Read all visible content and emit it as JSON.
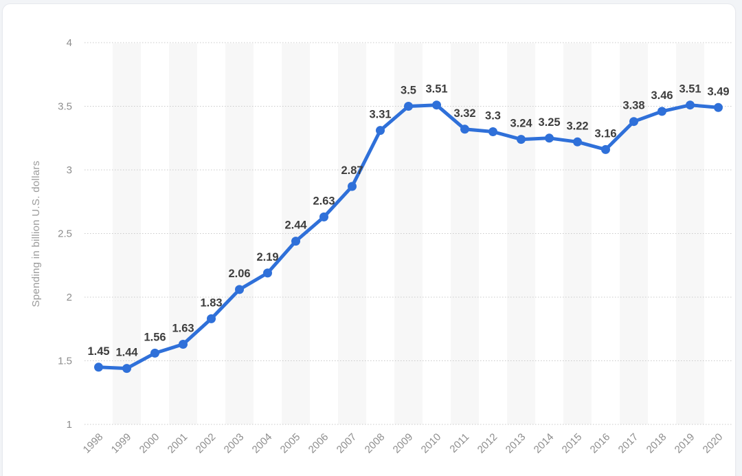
{
  "page": {
    "background_color": "#f2f4f7",
    "card_background_color": "#ffffff",
    "card_border_color": "#e7e9ee"
  },
  "chart_data": {
    "type": "line",
    "title": "",
    "x": [
      "1998",
      "1999",
      "2000",
      "2001",
      "2002",
      "2003",
      "2004",
      "2005",
      "2006",
      "2007",
      "2008",
      "2009",
      "2010",
      "2011",
      "2012",
      "2013",
      "2014",
      "2015",
      "2016",
      "2017",
      "2018",
      "2019",
      "2020"
    ],
    "series": [
      {
        "name": "Spending",
        "values": [
          1.45,
          1.44,
          1.56,
          1.63,
          1.83,
          2.06,
          2.19,
          2.44,
          2.63,
          2.87,
          3.31,
          3.5,
          3.51,
          3.32,
          3.3,
          3.24,
          3.25,
          3.22,
          3.16,
          3.38,
          3.46,
          3.51,
          3.49
        ]
      }
    ],
    "xlabel": "",
    "ylabel": "Spending in billion U.S. dollars",
    "ylim": [
      1,
      4
    ],
    "yticks": [
      1,
      1.5,
      2,
      2.5,
      3,
      3.5,
      4
    ],
    "grid": "horizontal-dotted",
    "legend": "none",
    "data_labels_shown": true,
    "x_tick_rotation": -45,
    "alternating_column_bands": "odd-columns",
    "colors": {
      "line": "#2f70d9",
      "marker": "#2f70d9",
      "band": "#f7f7f7",
      "grid": "#c9c9c9",
      "data_label": "#3d3d3d",
      "tick_label": "#8d8d8d",
      "axis_title": "#9b9b9b"
    }
  }
}
